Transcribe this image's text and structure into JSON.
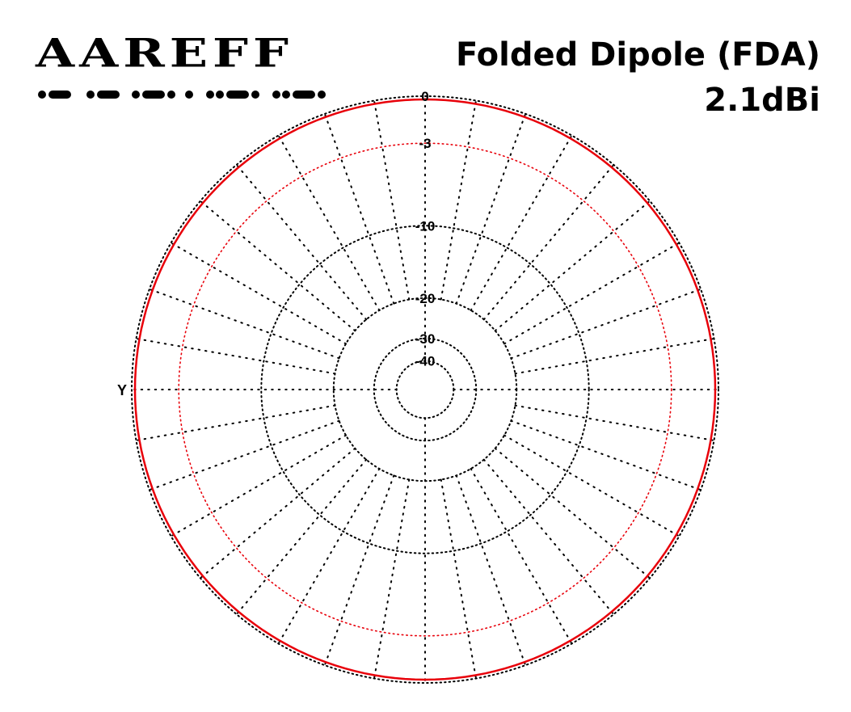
{
  "logo": {
    "text": "AAREFF"
  },
  "header": {
    "title": "Folded Dipole (FDA)",
    "gain": "2.1dBi"
  },
  "colors": {
    "pattern": "#e8000a",
    "reference_ring": "#e8000a",
    "grid": "#000000"
  },
  "chart_data": {
    "type": "polar",
    "title": "Folded Dipole (FDA)",
    "subtitle": "2.1dBi",
    "radial_unit": "dB",
    "rings": [
      {
        "value": 0,
        "label": "0"
      },
      {
        "value": -3,
        "label": "-3"
      },
      {
        "value": -10,
        "label": "-10"
      },
      {
        "value": -20,
        "label": "-20"
      },
      {
        "value": -30,
        "label": "-30"
      },
      {
        "value": -40,
        "label": "-40"
      }
    ],
    "spokes_count": 36,
    "axis_label": "Y",
    "series": [
      {
        "angles_deg": [
          0,
          30,
          60,
          90,
          120,
          150,
          180,
          210,
          240,
          270,
          300,
          330
        ],
        "values_db": [
          0,
          0,
          0,
          0,
          0,
          0,
          0,
          0,
          0,
          0,
          0,
          0
        ]
      }
    ]
  }
}
